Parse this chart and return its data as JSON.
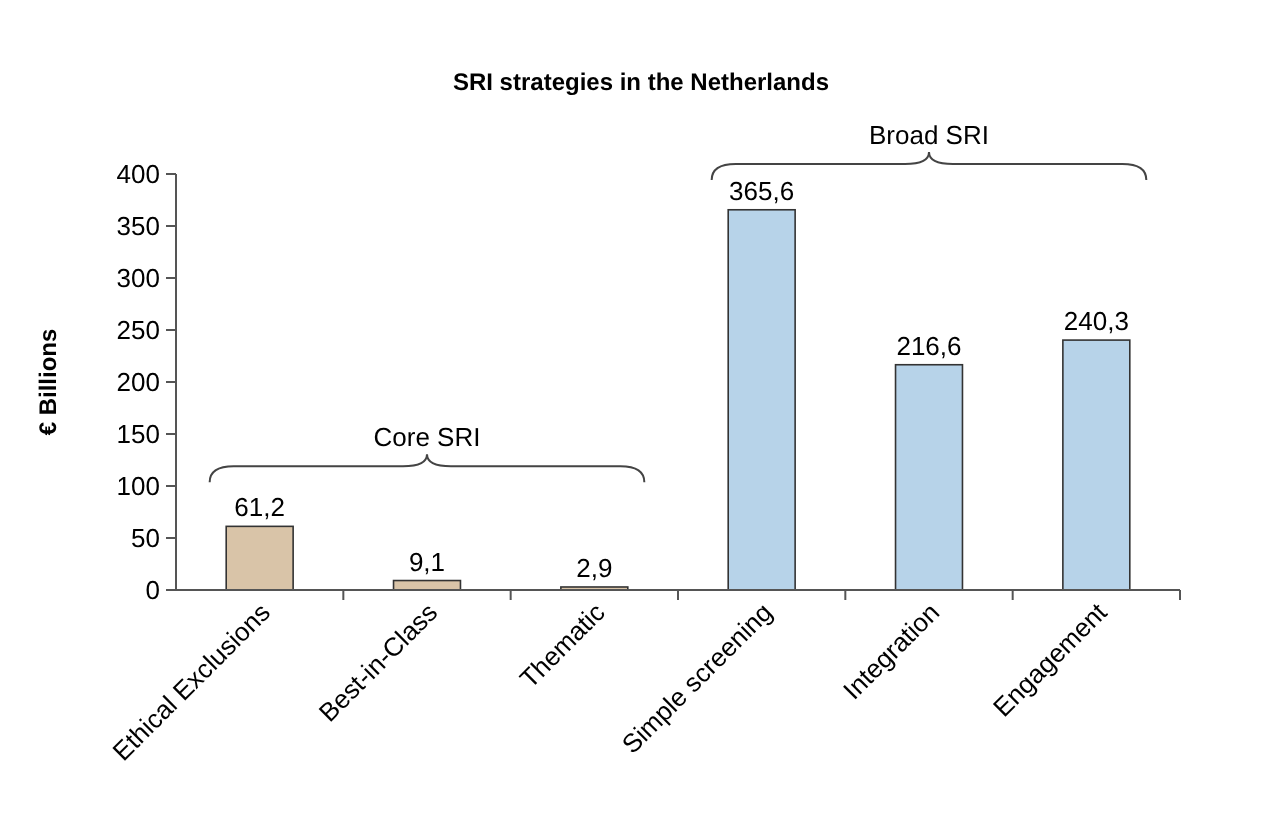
{
  "chart_data": {
    "type": "bar",
    "title": "SRI strategies in the Netherlands",
    "ylabel": "€ Billions",
    "categories": [
      "Ethical Exclusions",
      "Best-in-Class",
      "Thematic",
      "Simple screening",
      "Integration",
      "Engagement"
    ],
    "values": [
      61.2,
      9.1,
      2.9,
      365.6,
      216.6,
      240.3
    ],
    "value_labels": [
      "61,2",
      "9,1",
      "2,9",
      "365,6",
      "216,6",
      "240,3"
    ],
    "colors": [
      "#d9c4a8",
      "#d9c4a8",
      "#d9c4a8",
      "#b7d3e9",
      "#b7d3e9",
      "#b7d3e9"
    ],
    "ylim": [
      0,
      400
    ],
    "yticks": [
      0,
      50,
      100,
      150,
      200,
      250,
      300,
      350,
      400
    ],
    "grid": false,
    "annotations": [
      "Core SRI",
      "Broad SRI"
    ]
  }
}
